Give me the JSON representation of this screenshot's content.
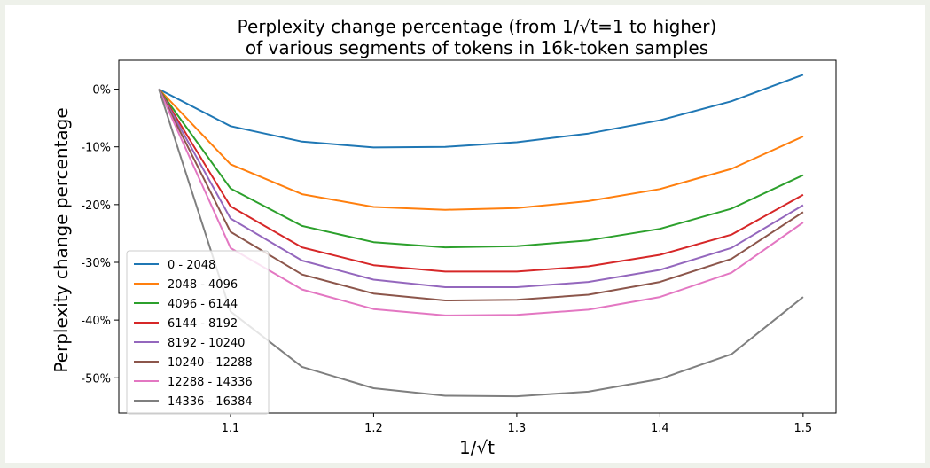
{
  "chart_data": {
    "type": "line",
    "title": [
      "Perplexity change percentage (from 1/√t=1 to higher)",
      "of various segments of tokens in 16k-token samples"
    ],
    "xlabel": "1/√t",
    "ylabel": "Perplexity change percentage",
    "xlim": [
      1.022,
      1.523
    ],
    "ylim": [
      -56.1,
      5.0
    ],
    "xticks": [
      1.1,
      1.2,
      1.3,
      1.4,
      1.5
    ],
    "xtick_labels": [
      "1.1",
      "1.2",
      "1.3",
      "1.4",
      "1.5"
    ],
    "yticks": [
      0,
      -10,
      -20,
      -30,
      -40,
      -50
    ],
    "ytick_labels": [
      "0%",
      "-10%",
      "-20%",
      "-30%",
      "-40%",
      "-50%"
    ],
    "grid": false,
    "legend_position": "lower-left",
    "x": [
      1.05,
      1.1,
      1.15,
      1.2,
      1.25,
      1.3,
      1.35,
      1.4,
      1.45,
      1.5
    ],
    "series": [
      {
        "name": "0 - 2048",
        "color": "#1f77b4",
        "values": [
          0,
          -6.4,
          -9.1,
          -10.1,
          -10.0,
          -9.2,
          -7.7,
          -5.4,
          -2.1,
          2.5
        ]
      },
      {
        "name": "2048 - 4096",
        "color": "#ff7f0e",
        "values": [
          0,
          -13.0,
          -18.2,
          -20.4,
          -20.9,
          -20.6,
          -19.4,
          -17.3,
          -13.8,
          -8.2
        ]
      },
      {
        "name": "4096 - 6144",
        "color": "#2ca02c",
        "values": [
          0,
          -17.2,
          -23.7,
          -26.5,
          -27.4,
          -27.2,
          -26.2,
          -24.2,
          -20.7,
          -14.9
        ]
      },
      {
        "name": "6144 - 8192",
        "color": "#d62728",
        "values": [
          0,
          -20.3,
          -27.4,
          -30.5,
          -31.6,
          -31.6,
          -30.7,
          -28.7,
          -25.2,
          -18.3
        ]
      },
      {
        "name": "8192 - 10240",
        "color": "#9467bd",
        "values": [
          0,
          -22.4,
          -29.7,
          -33.0,
          -34.3,
          -34.3,
          -33.4,
          -31.3,
          -27.5,
          -20.1
        ]
      },
      {
        "name": "10240 - 12288",
        "color": "#8c564b",
        "values": [
          0,
          -24.7,
          -32.1,
          -35.4,
          -36.6,
          -36.5,
          -35.6,
          -33.4,
          -29.4,
          -21.3
        ]
      },
      {
        "name": "12288 - 14336",
        "color": "#e377c2",
        "values": [
          0,
          -27.5,
          -34.7,
          -38.1,
          -39.2,
          -39.1,
          -38.2,
          -36.0,
          -31.8,
          -23.1
        ]
      },
      {
        "name": "14336 - 16384",
        "color": "#7f7f7f",
        "values": [
          0,
          -38.5,
          -48.1,
          -51.8,
          -53.1,
          -53.2,
          -52.4,
          -50.2,
          -45.9,
          -36.0
        ]
      }
    ]
  }
}
